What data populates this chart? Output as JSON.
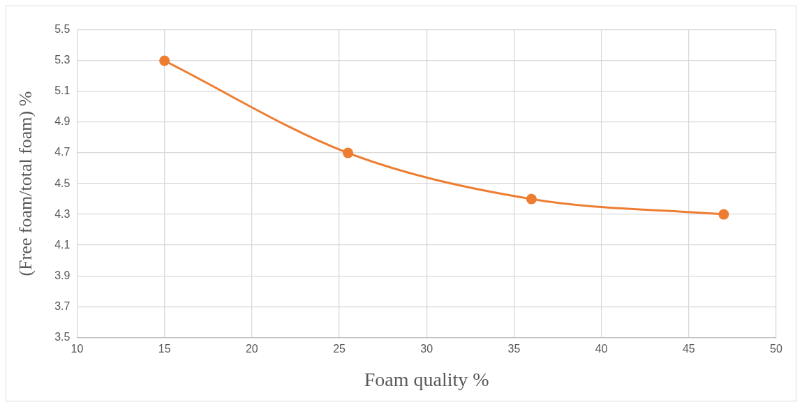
{
  "chart_data": {
    "type": "line",
    "xlabel": "Foam quality %",
    "ylabel": "(Free foam/total foam) %",
    "series": [
      {
        "color": "#ed7d31",
        "x": [
          15,
          25.5,
          36,
          47
        ],
        "values": [
          5.3,
          4.7,
          4.4,
          4.3
        ]
      }
    ],
    "xlim": [
      10,
      50
    ],
    "xticks": [
      10,
      15,
      20,
      25,
      30,
      35,
      40,
      45,
      50
    ],
    "ylim": [
      3.5,
      5.5
    ],
    "yticks": [
      {
        "value": 3.5,
        "label": "3.5"
      },
      {
        "value": 3.7,
        "label": "3.7"
      },
      {
        "value": 3.9,
        "label": "3.9"
      },
      {
        "value": 4.1,
        "label": "4.1"
      },
      {
        "value": 4.3,
        "label": "4.3"
      },
      {
        "value": 4.5,
        "label": "4.5"
      },
      {
        "value": 4.7,
        "label": "4.7"
      },
      {
        "value": 4.9,
        "label": "4.9"
      },
      {
        "value": 5.1,
        "label": "5.1"
      },
      {
        "value": 5.3,
        "label": "5.3"
      },
      {
        "value": 5.5,
        "label": "5.5"
      }
    ],
    "grid": true,
    "legend": false,
    "marker": "circle",
    "line_style": "solid"
  }
}
